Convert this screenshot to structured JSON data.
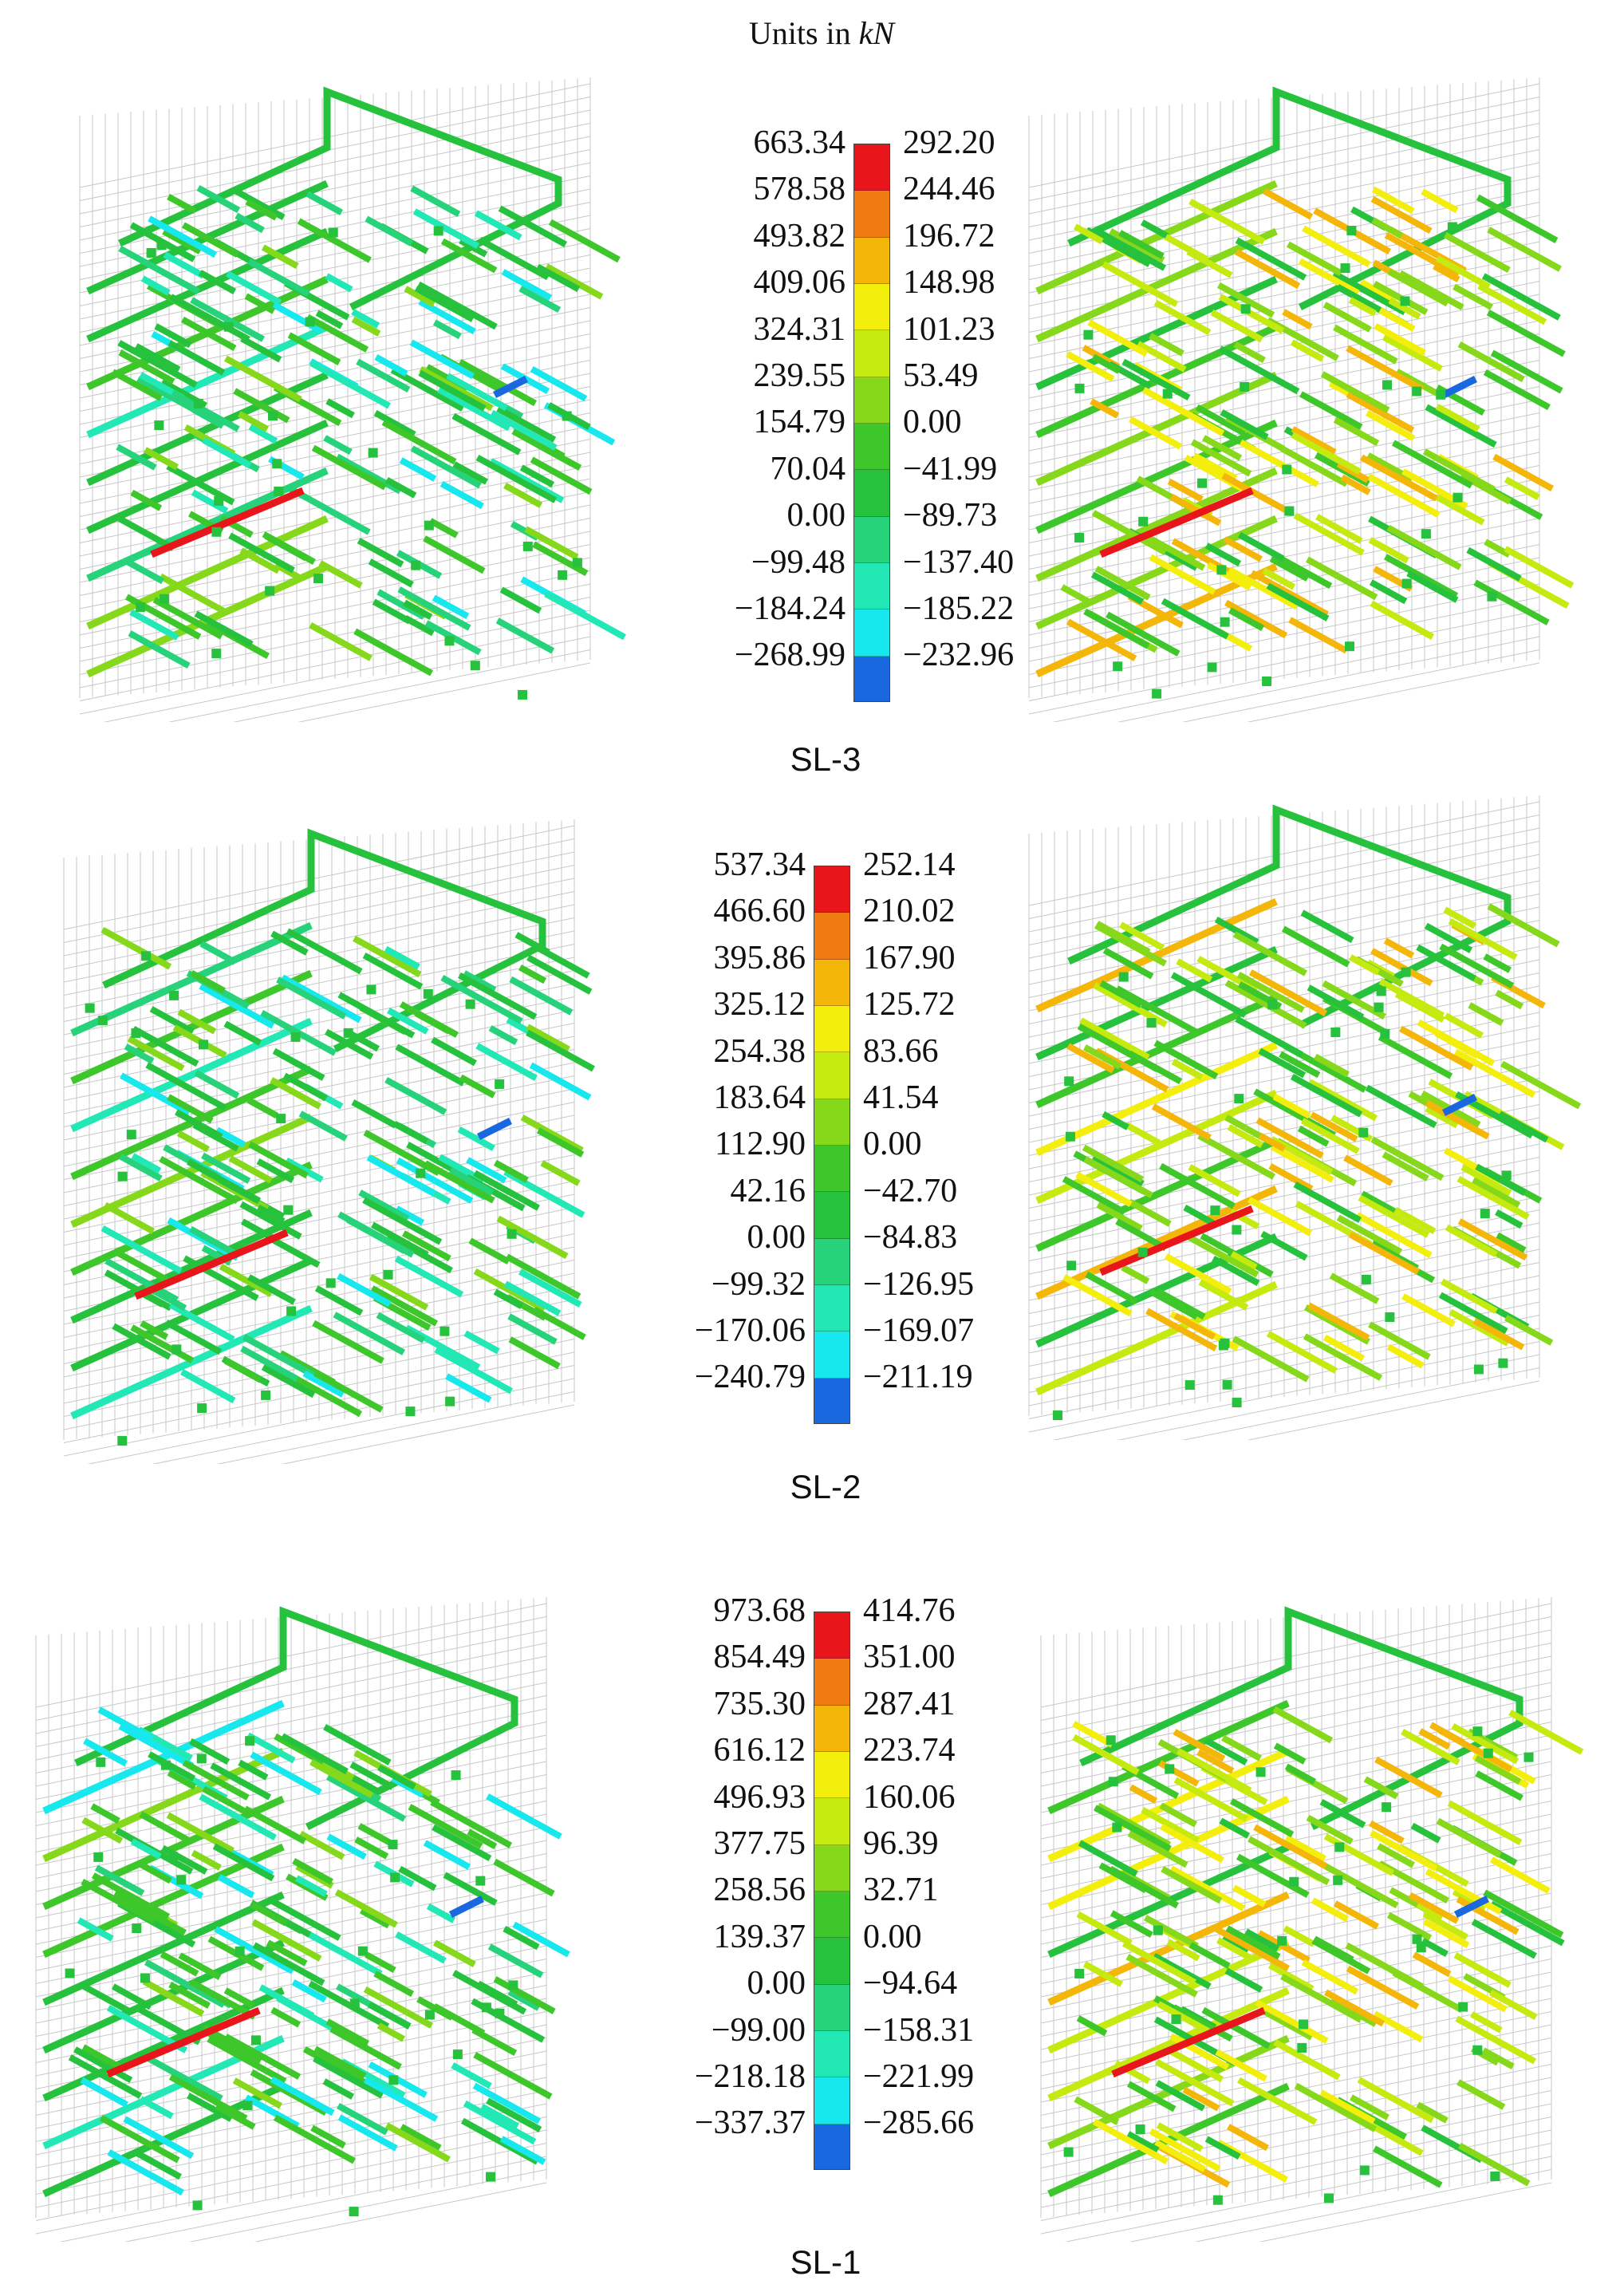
{
  "figure": {
    "units_prefix": "Units in ",
    "units_unit": "kN"
  },
  "colors": [
    "#e8161b",
    "#f07b12",
    "#f5b60a",
    "#f3ee0b",
    "#c4ea10",
    "#86d81b",
    "#3ec72a",
    "#26c23d",
    "#27d37a",
    "#22e8b6",
    "#16e8ee",
    "#1a68e0"
  ],
  "panels": [
    {
      "label": "SL-3",
      "legend_left": [
        "663.34",
        "578.58",
        "493.82",
        "409.06",
        "324.31",
        "239.55",
        "154.79",
        "70.04",
        "0.00",
        "−99.48",
        "−184.24",
        "−268.99"
      ],
      "legend_right": [
        "292.20",
        "244.46",
        "196.72",
        "148.98",
        "101.23",
        "53.49",
        "0.00",
        "−41.99",
        "−89.73",
        "−137.40",
        "−185.22",
        "−232.96"
      ]
    },
    {
      "label": "SL-2",
      "legend_left": [
        "537.34",
        "466.60",
        "395.86",
        "325.12",
        "254.38",
        "183.64",
        "112.90",
        "42.16",
        "0.00",
        "−99.32",
        "−170.06",
        "−240.79"
      ],
      "legend_right": [
        "252.14",
        "210.02",
        "167.90",
        "125.72",
        "83.66",
        "41.54",
        "0.00",
        "−42.70",
        "−84.83",
        "−126.95",
        "−169.07",
        "−211.19"
      ]
    },
    {
      "label": "SL-1",
      "legend_left": [
        "973.68",
        "854.49",
        "735.30",
        "616.12",
        "496.93",
        "377.75",
        "258.56",
        "139.37",
        "0.00",
        "−99.00",
        "−218.18",
        "−337.37"
      ],
      "legend_right": [
        "414.76",
        "351.00",
        "287.41",
        "223.74",
        "160.06",
        "96.39",
        "32.71",
        "0.00",
        "−94.64",
        "−158.31",
        "−221.99",
        "−285.66"
      ]
    }
  ]
}
